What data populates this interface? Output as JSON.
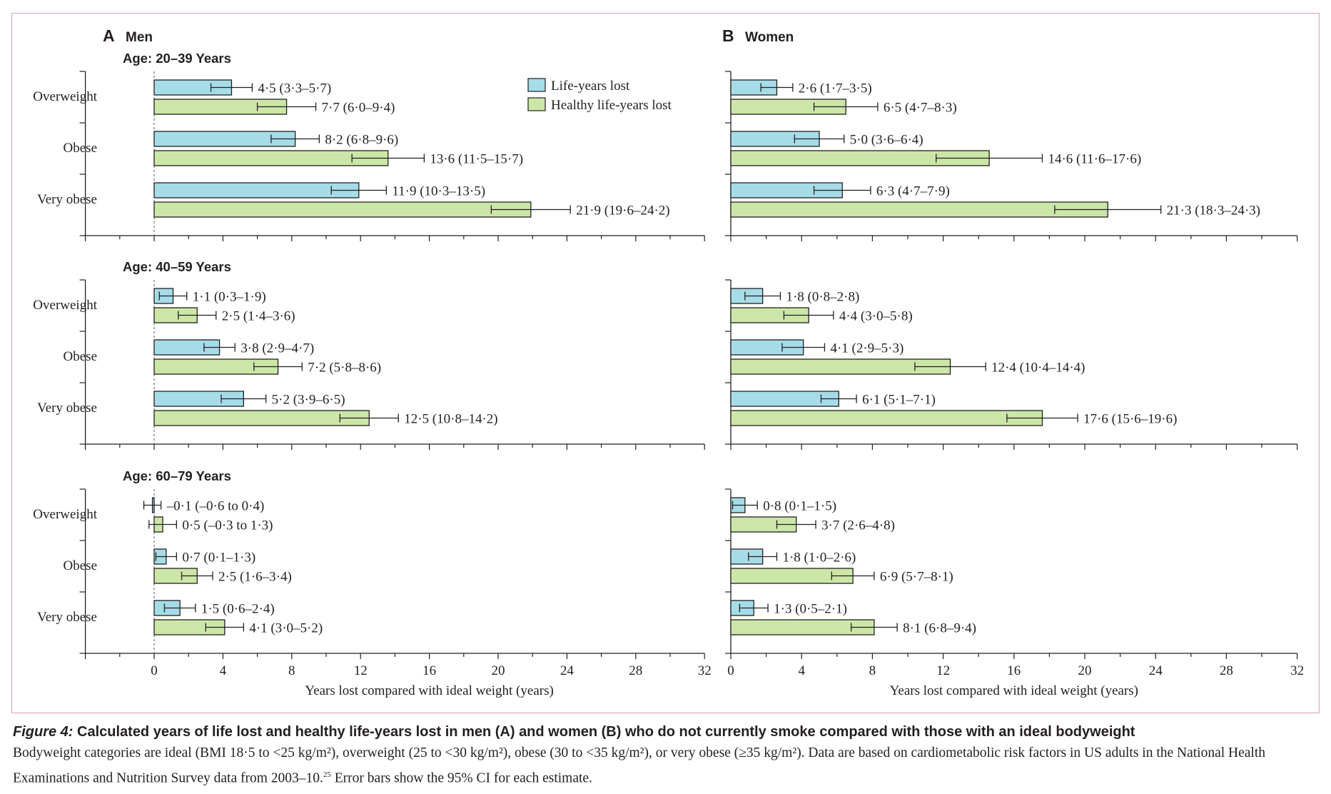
{
  "colors": {
    "life_years": "#a6dce8",
    "healthy_life_years": "#cce6a8",
    "frame": "#d8a0b4",
    "ink": "#231f20"
  },
  "panels": [
    {
      "letter": "A",
      "title": "Men"
    },
    {
      "letter": "B",
      "title": "Women"
    }
  ],
  "legend": [
    {
      "label": "Life-years lost",
      "color": "#a6dce8"
    },
    {
      "label": "Healthy life-years lost",
      "color": "#cce6a8"
    }
  ],
  "caption": {
    "label": "Figure 4:",
    "title": " Calculated years of life lost and healthy life-years lost in men (A) and women (B) who do not currently smoke compared with those with an ideal bodyweight",
    "body": "Bodyweight categories are ideal (BMI 18·5 to <25 kg/m²), overweight (25 to <30 kg/m²), obese (30 to <35 kg/m²), or very obese (≥35 kg/m²). Data are based on cardiometabolic risk factors in US adults in the National Health Examinations and Nutrition Survey data from 2003–10.",
    "ref": "25",
    "body_end": " Error bars show the 95% CI for each estimate."
  },
  "chart_data": [
    {
      "type": "bar",
      "panel": "A",
      "title": "Men",
      "orientation": "horizontal",
      "xlabel": "Years lost compared with ideal weight (years)",
      "xlim": [
        -4,
        32
      ],
      "xticks": [
        0,
        4,
        8,
        12,
        16,
        20,
        24,
        28,
        32
      ],
      "categories": [
        "Overweight",
        "Obese",
        "Very obese"
      ],
      "series_names": [
        "Life-years lost",
        "Healthy life-years lost"
      ],
      "legend_position": "top-right",
      "groups": [
        {
          "age": "Age: 20–39 Years",
          "series": [
            {
              "name": "Life-years lost",
              "values": [
                4.5,
                8.2,
                11.9
              ],
              "ci_low": [
                3.3,
                6.8,
                10.3
              ],
              "ci_high": [
                5.7,
                9.6,
                13.5
              ],
              "labels": [
                "4·5 (3·3–5·7)",
                "8·2 (6·8–9·6)",
                "11·9 (10·3–13·5)"
              ]
            },
            {
              "name": "Healthy life-years lost",
              "values": [
                7.7,
                13.6,
                21.9
              ],
              "ci_low": [
                6.0,
                11.5,
                19.6
              ],
              "ci_high": [
                9.4,
                15.7,
                24.2
              ],
              "labels": [
                "7·7 (6·0–9·4)",
                "13·6 (11·5–15·7)",
                "21·9 (19·6–24·2)"
              ]
            }
          ]
        },
        {
          "age": "Age: 40–59 Years",
          "series": [
            {
              "name": "Life-years lost",
              "values": [
                1.1,
                3.8,
                5.2
              ],
              "ci_low": [
                0.3,
                2.9,
                3.9
              ],
              "ci_high": [
                1.9,
                4.7,
                6.5
              ],
              "labels": [
                "1·1 (0·3–1·9)",
                "3·8 (2·9–4·7)",
                "5·2 (3·9–6·5)"
              ]
            },
            {
              "name": "Healthy life-years lost",
              "values": [
                2.5,
                7.2,
                12.5
              ],
              "ci_low": [
                1.4,
                5.8,
                10.8
              ],
              "ci_high": [
                3.6,
                8.6,
                14.2
              ],
              "labels": [
                "2·5 (1·4–3·6)",
                "7·2 (5·8–8·6)",
                "12·5 (10·8–14·2)"
              ]
            }
          ]
        },
        {
          "age": "Age: 60–79 Years",
          "series": [
            {
              "name": "Life-years lost",
              "values": [
                -0.1,
                0.7,
                1.5
              ],
              "ci_low": [
                -0.6,
                0.1,
                0.6
              ],
              "ci_high": [
                0.4,
                1.3,
                2.4
              ],
              "labels": [
                "–0·1 (–0·6 to 0·4)",
                "0·7 (0·1–1·3)",
                "1·5 (0·6–2·4)"
              ]
            },
            {
              "name": "Healthy life-years lost",
              "values": [
                0.5,
                2.5,
                4.1
              ],
              "ci_low": [
                -0.3,
                1.6,
                3.0
              ],
              "ci_high": [
                1.3,
                3.4,
                5.2
              ],
              "labels": [
                "0·5 (–0·3 to 1·3)",
                "2·5 (1·6–3·4)",
                "4·1 (3·0–5·2)"
              ]
            }
          ]
        }
      ]
    },
    {
      "type": "bar",
      "panel": "B",
      "title": "Women",
      "orientation": "horizontal",
      "xlabel": "Years lost compared with ideal weight (years)",
      "xlim": [
        0,
        32
      ],
      "xticks": [
        0,
        4,
        8,
        12,
        16,
        20,
        24,
        28,
        32
      ],
      "categories": [
        "Overweight",
        "Obese",
        "Very obese"
      ],
      "series_names": [
        "Life-years lost",
        "Healthy life-years lost"
      ],
      "groups": [
        {
          "age": "",
          "series": [
            {
              "name": "Life-years lost",
              "values": [
                2.6,
                5.0,
                6.3
              ],
              "ci_low": [
                1.7,
                3.6,
                4.7
              ],
              "ci_high": [
                3.5,
                6.4,
                7.9
              ],
              "labels": [
                "2·6 (1·7–3·5)",
                "5·0 (3·6–6·4)",
                "6·3 (4·7–7·9)"
              ]
            },
            {
              "name": "Healthy life-years lost",
              "values": [
                6.5,
                14.6,
                21.3
              ],
              "ci_low": [
                4.7,
                11.6,
                18.3
              ],
              "ci_high": [
                8.3,
                17.6,
                24.3
              ],
              "labels": [
                "6·5 (4·7–8·3)",
                "14·6 (11·6–17·6)",
                "21·3 (18·3–24·3)"
              ]
            }
          ]
        },
        {
          "age": "",
          "series": [
            {
              "name": "Life-years lost",
              "values": [
                1.8,
                4.1,
                6.1
              ],
              "ci_low": [
                0.8,
                2.9,
                5.1
              ],
              "ci_high": [
                2.8,
                5.3,
                7.1
              ],
              "labels": [
                "1·8 (0·8–2·8)",
                "4·1 (2·9–5·3)",
                "6·1 (5·1–7·1)"
              ]
            },
            {
              "name": "Healthy life-years lost",
              "values": [
                4.4,
                12.4,
                17.6
              ],
              "ci_low": [
                3.0,
                10.4,
                15.6
              ],
              "ci_high": [
                5.8,
                14.4,
                19.6
              ],
              "labels": [
                "4·4 (3·0–5·8)",
                "12·4 (10·4–14·4)",
                "17·6 (15·6–19·6)"
              ]
            }
          ]
        },
        {
          "age": "",
          "series": [
            {
              "name": "Life-years lost",
              "values": [
                0.8,
                1.8,
                1.3
              ],
              "ci_low": [
                0.1,
                1.0,
                0.5
              ],
              "ci_high": [
                1.5,
                2.6,
                2.1
              ],
              "labels": [
                "0·8 (0·1–1·5)",
                "1·8 (1·0–2·6)",
                "1·3 (0·5–2·1)"
              ]
            },
            {
              "name": "Healthy life-years lost",
              "values": [
                3.7,
                6.9,
                8.1
              ],
              "ci_low": [
                2.6,
                5.7,
                6.8
              ],
              "ci_high": [
                4.8,
                8.1,
                9.4
              ],
              "labels": [
                "3·7 (2·6–4·8)",
                "6·9 (5·7–8·1)",
                "8·1 (6·8–9·4)"
              ]
            }
          ]
        }
      ]
    }
  ]
}
